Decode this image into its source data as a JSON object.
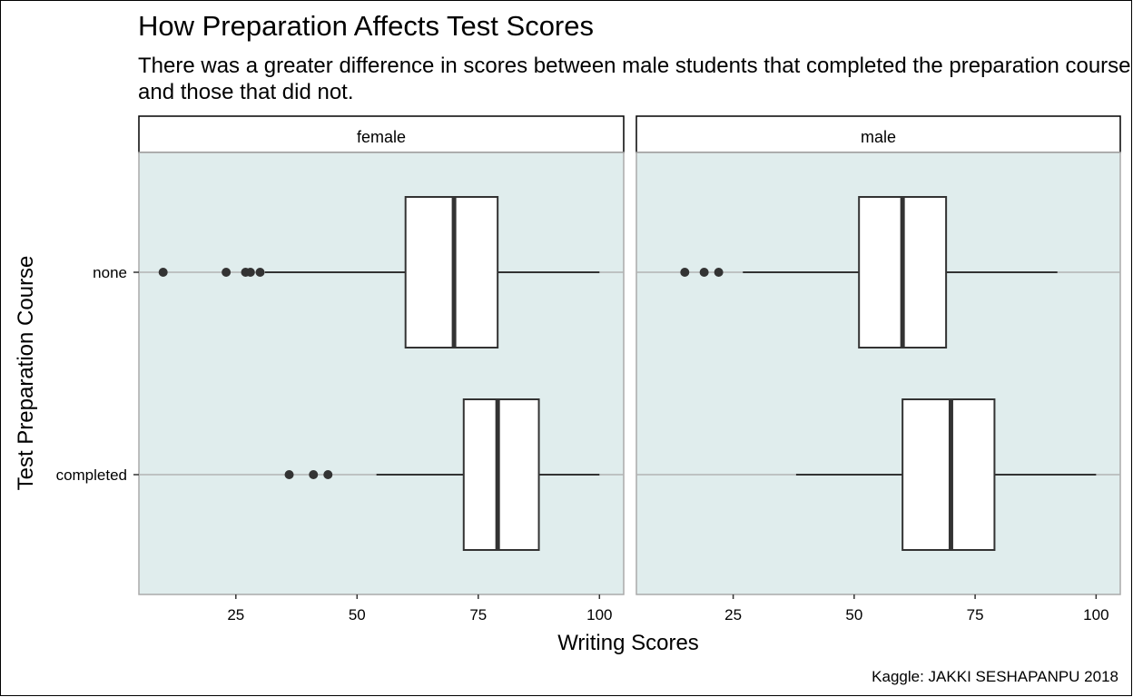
{
  "chart_data": {
    "type": "boxplot",
    "title": "How Preparation Affects Test Scores",
    "subtitle_lines": [
      "There was a greater difference in scores between male students that completed the preparation course",
      "and those that did not."
    ],
    "xlabel": "Writing Scores",
    "ylabel": "Test Preparation Course",
    "caption": "Kaggle: JAKKI SESHAPANPU 2018",
    "x_ticks": [
      25,
      50,
      75,
      100
    ],
    "xlim": [
      5,
      105
    ],
    "categories": [
      "none",
      "completed"
    ],
    "facets": [
      {
        "label": "female",
        "boxes": [
          {
            "category": "none",
            "whisker_low": 31,
            "q1": 60,
            "median": 70,
            "q3": 79,
            "whisker_high": 100,
            "outliers": [
              10,
              23,
              27,
              28,
              30
            ]
          },
          {
            "category": "completed",
            "whisker_low": 54,
            "q1": 72,
            "median": 79,
            "q3": 87.5,
            "whisker_high": 100,
            "outliers": [
              36,
              41,
              44
            ]
          }
        ]
      },
      {
        "label": "male",
        "boxes": [
          {
            "category": "none",
            "whisker_low": 27,
            "q1": 51,
            "median": 60,
            "q3": 69,
            "whisker_high": 92,
            "outliers": [
              15,
              19,
              22
            ]
          },
          {
            "category": "completed",
            "whisker_low": 38,
            "q1": 60,
            "median": 70,
            "q3": 79,
            "whisker_high": 100,
            "outliers": []
          }
        ]
      }
    ],
    "colors": {
      "panel_background": "#e0eded",
      "box_fill": "#ffffff",
      "box_line": "#333333",
      "outlier": "#333333",
      "gridline": "#b3b3b3",
      "strip_background": "#ffffff"
    }
  }
}
